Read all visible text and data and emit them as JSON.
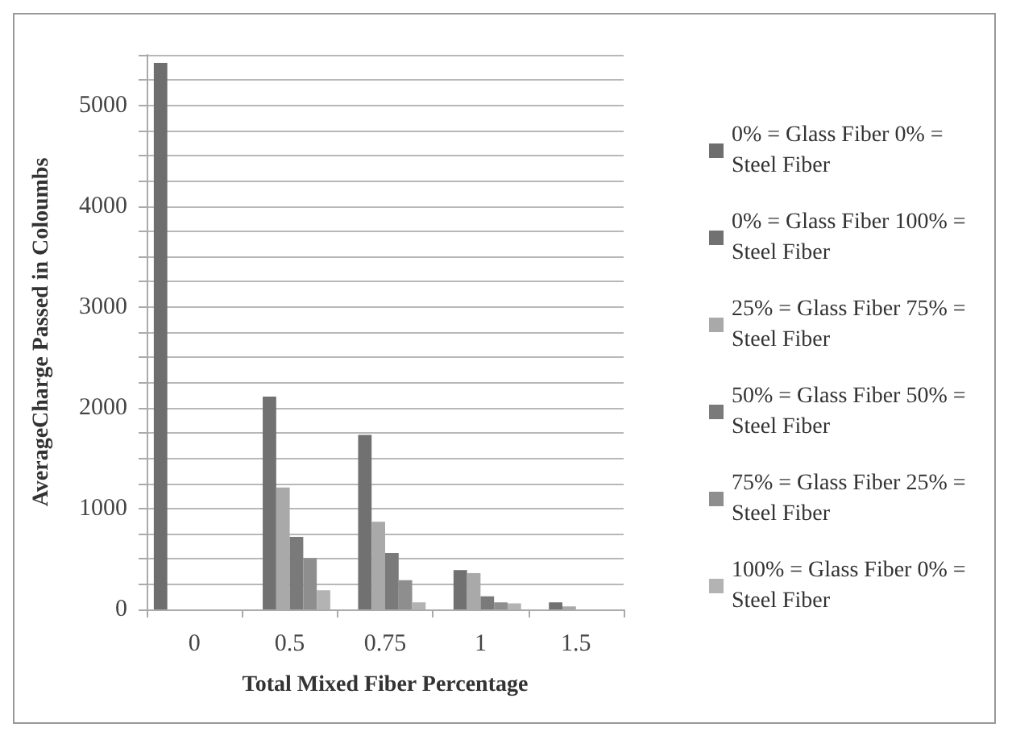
{
  "chart_data": {
    "type": "bar",
    "xlabel": "Total Mixed Fiber Percentage",
    "ylabel": "AverageCharge Passed in Coloumbs",
    "categories": [
      "0",
      "0.5",
      "0.75",
      "1",
      "1.5"
    ],
    "series": [
      {
        "name": "0% = Glass Fiber 0% = Steel Fiber",
        "color": "#6e6e6e",
        "values": [
          5420,
          null,
          null,
          null,
          null
        ]
      },
      {
        "name": "0% = Glass Fiber 100% = Steel Fiber",
        "color": "#717171",
        "values": [
          null,
          2110,
          1730,
          390,
          70
        ]
      },
      {
        "name": "25% = Glass Fiber 75% = Steel Fiber",
        "color": "#a9a9a9",
        "values": [
          null,
          1210,
          870,
          360,
          30
        ]
      },
      {
        "name": "50% = Glass Fiber 50% = Steel Fiber",
        "color": "#7a7a7a",
        "values": [
          null,
          720,
          560,
          130,
          null
        ]
      },
      {
        "name": "75% = Glass Fiber 25% = Steel Fiber",
        "color": "#8e8e8e",
        "values": [
          null,
          510,
          290,
          70,
          null
        ]
      },
      {
        "name": "100% = Glass Fiber 0% = Steel Fiber",
        "color": "#b3b3b3",
        "values": [
          null,
          190,
          70,
          60,
          null
        ]
      }
    ],
    "ylim": [
      0,
      5500
    ],
    "yticks": [
      0,
      {
        "value": 250,
        "label": null
      },
      1000,
      {
        "value": 500,
        "label": null
      },
      {
        "value": 750,
        "label": null
      },
      {
        "value": 1250,
        "label": null
      },
      {
        "value": 1500,
        "label": null
      },
      {
        "value": 1750,
        "label": null
      },
      2000,
      {
        "value": 2250,
        "label": null
      },
      {
        "value": 2500,
        "label": null
      },
      {
        "value": 2750,
        "label": null
      },
      3000,
      {
        "value": 3250,
        "label": null
      },
      {
        "value": 3500,
        "label": null
      },
      {
        "value": 3750,
        "label": null
      },
      4000,
      {
        "value": 4250,
        "label": null
      },
      {
        "value": 4500,
        "label": null
      },
      {
        "value": 4750,
        "label": null
      },
      5000,
      {
        "value": 5250,
        "label": null
      },
      {
        "value": 5500,
        "label": null
      }
    ],
    "grid": "y",
    "legend": "right"
  }
}
